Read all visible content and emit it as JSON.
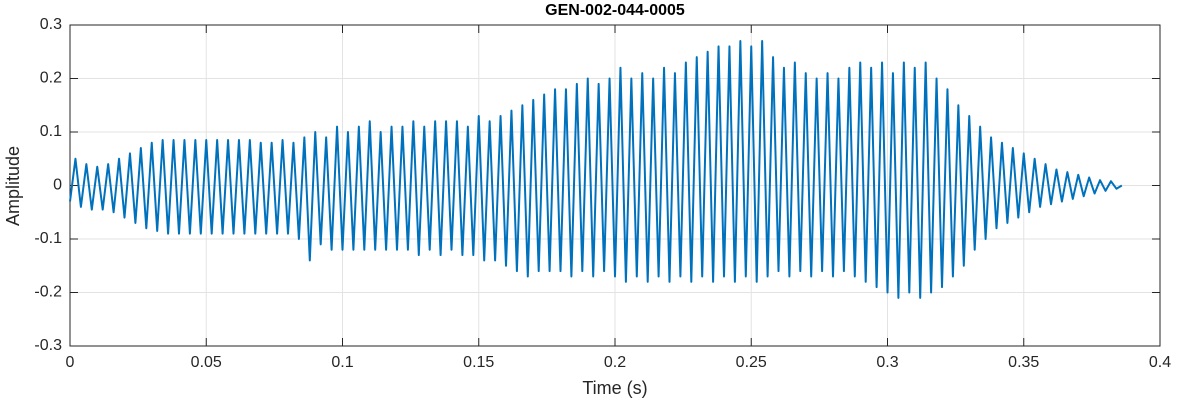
{
  "chart_data": {
    "type": "line",
    "title": "GEN-002-044-0005",
    "x_label": "Time (s)",
    "y_label": "Amplitude",
    "x": [
      0,
      0.002,
      0.004,
      0.006,
      0.008,
      0.01,
      0.012,
      0.014,
      0.016,
      0.018,
      0.02,
      0.022,
      0.024,
      0.026,
      0.028,
      0.03,
      0.032,
      0.034,
      0.036,
      0.038,
      0.04,
      0.042,
      0.044,
      0.046,
      0.048,
      0.05,
      0.052,
      0.054,
      0.056,
      0.058,
      0.06,
      0.062,
      0.064,
      0.066,
      0.068,
      0.07,
      0.072,
      0.074,
      0.076,
      0.078,
      0.08,
      0.082,
      0.084,
      0.086,
      0.088,
      0.09,
      0.092,
      0.094,
      0.096,
      0.098,
      0.1,
      0.102,
      0.104,
      0.106,
      0.108,
      0.11,
      0.112,
      0.114,
      0.116,
      0.118,
      0.12,
      0.122,
      0.124,
      0.126,
      0.128,
      0.13,
      0.132,
      0.134,
      0.136,
      0.138,
      0.14,
      0.142,
      0.144,
      0.146,
      0.148,
      0.15,
      0.152,
      0.154,
      0.156,
      0.158,
      0.16,
      0.162,
      0.164,
      0.166,
      0.168,
      0.17,
      0.172,
      0.174,
      0.176,
      0.178,
      0.18,
      0.182,
      0.184,
      0.186,
      0.188,
      0.19,
      0.192,
      0.194,
      0.196,
      0.198,
      0.2,
      0.202,
      0.204,
      0.206,
      0.208,
      0.21,
      0.212,
      0.214,
      0.216,
      0.218,
      0.22,
      0.222,
      0.224,
      0.226,
      0.228,
      0.23,
      0.232,
      0.234,
      0.236,
      0.238,
      0.24,
      0.242,
      0.244,
      0.246,
      0.248,
      0.25,
      0.252,
      0.254,
      0.256,
      0.258,
      0.26,
      0.262,
      0.264,
      0.266,
      0.268,
      0.27,
      0.272,
      0.274,
      0.276,
      0.278,
      0.28,
      0.282,
      0.284,
      0.286,
      0.288,
      0.29,
      0.292,
      0.294,
      0.296,
      0.298,
      0.3,
      0.302,
      0.304,
      0.306,
      0.308,
      0.31,
      0.312,
      0.314,
      0.316,
      0.318,
      0.32,
      0.322,
      0.324,
      0.326,
      0.328,
      0.33,
      0.332,
      0.334,
      0.336,
      0.338,
      0.34,
      0.342,
      0.344,
      0.346,
      0.348,
      0.35,
      0.352,
      0.354,
      0.356,
      0.358,
      0.36,
      0.362,
      0.364,
      0.366,
      0.368,
      0.37,
      0.372,
      0.374,
      0.376,
      0.378,
      0.38,
      0.382,
      0.384,
      0.386
    ],
    "series": [
      {
        "color": "#0072bd",
        "values": [
          -0.03,
          0.05,
          -0.04,
          0.04,
          -0.045,
          0.035,
          -0.045,
          0.04,
          -0.05,
          0.05,
          -0.06,
          0.06,
          -0.07,
          0.07,
          -0.08,
          0.08,
          -0.085,
          0.085,
          -0.09,
          0.085,
          -0.09,
          0.085,
          -0.09,
          0.085,
          -0.09,
          0.085,
          -0.09,
          0.085,
          -0.09,
          0.085,
          -0.09,
          0.085,
          -0.09,
          0.085,
          -0.09,
          0.08,
          -0.09,
          0.08,
          -0.09,
          0.085,
          -0.09,
          0.08,
          -0.1,
          0.09,
          -0.14,
          0.1,
          -0.11,
          0.09,
          -0.12,
          0.11,
          -0.12,
          0.1,
          -0.12,
          0.11,
          -0.12,
          0.12,
          -0.12,
          0.1,
          -0.12,
          0.11,
          -0.12,
          0.11,
          -0.12,
          0.12,
          -0.13,
          0.11,
          -0.12,
          0.12,
          -0.13,
          0.12,
          -0.12,
          0.12,
          -0.13,
          0.11,
          -0.13,
          0.13,
          -0.14,
          0.12,
          -0.14,
          0.13,
          -0.15,
          0.14,
          -0.16,
          0.15,
          -0.17,
          0.16,
          -0.16,
          0.17,
          -0.16,
          0.18,
          -0.16,
          0.18,
          -0.17,
          0.19,
          -0.16,
          0.2,
          -0.17,
          0.19,
          -0.16,
          0.2,
          -0.17,
          0.22,
          -0.18,
          0.2,
          -0.17,
          0.21,
          -0.18,
          0.2,
          -0.17,
          0.22,
          -0.18,
          0.21,
          -0.17,
          0.23,
          -0.18,
          0.24,
          -0.17,
          0.25,
          -0.18,
          0.26,
          -0.17,
          0.26,
          -0.18,
          0.27,
          -0.17,
          0.26,
          -0.18,
          0.27,
          -0.17,
          0.24,
          -0.16,
          0.22,
          -0.17,
          0.23,
          -0.16,
          0.21,
          -0.17,
          0.2,
          -0.16,
          0.21,
          -0.17,
          0.2,
          -0.16,
          0.22,
          -0.17,
          0.23,
          -0.18,
          0.22,
          -0.19,
          0.23,
          -0.2,
          0.21,
          -0.21,
          0.23,
          -0.2,
          0.22,
          -0.21,
          0.23,
          -0.2,
          0.2,
          -0.19,
          0.18,
          -0.17,
          0.15,
          -0.15,
          0.13,
          -0.12,
          0.11,
          -0.1,
          0.09,
          -0.08,
          0.08,
          -0.07,
          0.07,
          -0.06,
          0.06,
          -0.05,
          0.05,
          -0.04,
          0.04,
          -0.035,
          0.03,
          -0.03,
          0.025,
          -0.025,
          0.02,
          -0.02,
          0.015,
          -0.015,
          0.01,
          -0.01,
          0.008,
          -0.006,
          0
        ]
      }
    ],
    "xlim": [
      0,
      0.4
    ],
    "xticks": [
      0,
      0.05,
      0.1,
      0.15,
      0.2,
      0.25,
      0.3,
      0.35,
      0.4
    ],
    "ylim": [
      -0.3,
      0.3
    ],
    "yticks": [
      -0.3,
      -0.2,
      -0.1,
      0,
      0.1,
      0.2,
      0.3
    ],
    "grid": true
  }
}
